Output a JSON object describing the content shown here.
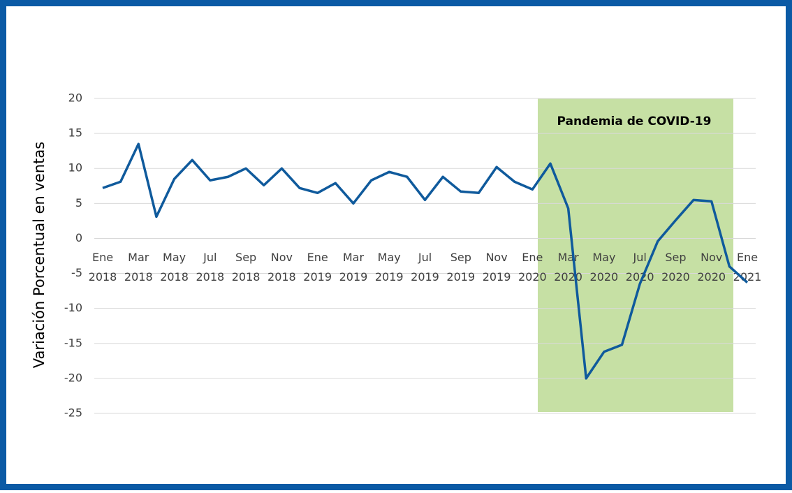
{
  "chart_data": {
    "type": "line",
    "ylabel": "Variación Porcentual en ventas",
    "annotation": "Pandemia de COVID-19",
    "categories": [
      "Ene 2018",
      null,
      "Mar 2018",
      null,
      "May 2018",
      null,
      "Jul 2018",
      null,
      "Sep 2018",
      null,
      "Nov 2018",
      null,
      "Ene 2019",
      null,
      "Mar 2019",
      null,
      "May 2019",
      null,
      "Jul 2019",
      null,
      "Sep 2019",
      null,
      "Nov 2019",
      null,
      "Ene 2020",
      null,
      "Mar 2020",
      null,
      "May 2020",
      null,
      "Jul 2020",
      null,
      "Sep 2020",
      null,
      "Nov 2020",
      null,
      "Ene 2021"
    ],
    "series": [
      {
        "color": "#0f5a9c",
        "values": [
          7.2,
          8.1,
          13.5,
          3.1,
          8.5,
          11.2,
          8.3,
          8.8,
          10.0,
          7.6,
          10.0,
          7.2,
          6.5,
          7.9,
          5.0,
          8.3,
          9.5,
          8.8,
          5.5,
          8.8,
          6.7,
          6.5,
          10.2,
          8.1,
          7.0,
          10.7,
          4.3,
          -20.0,
          -16.2,
          -15.2,
          -6.5,
          -0.4,
          2.6,
          5.5,
          5.3,
          -4.0,
          -6.3
        ]
      }
    ],
    "ylim": [
      -25,
      20
    ],
    "yticks": [
      -25,
      -20,
      -15,
      -10,
      -5,
      0,
      5,
      10,
      15,
      20
    ],
    "grid": true,
    "highlight_color": "#c6e0a4"
  }
}
